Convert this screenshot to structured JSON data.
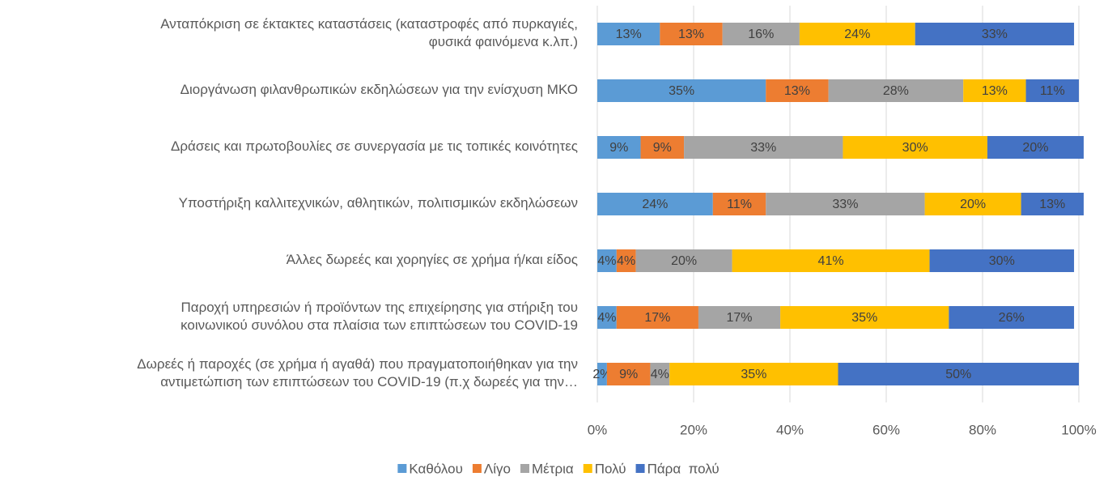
{
  "chart_data": {
    "type": "stacked_barh",
    "categories": [
      [
        "Ανταπόκριση σε έκτακτες καταστάσεις (καταστροφές από πυρκαγιές,",
        "φυσικά φαινόμενα κ.λπ.)"
      ],
      [
        "Διοργάνωση φιλανθρωπικών εκδηλώσεων για την ενίσχυση ΜΚΟ"
      ],
      [
        "Δράσεις και πρωτοβουλίες σε συνεργασία με τις τοπικές κοινότητες"
      ],
      [
        "Υποστήριξη καλλιτεχνικών, αθλητικών, πολιτισμικών εκδηλώσεων"
      ],
      [
        "Άλλες δωρεές και χορηγίες σε χρήμα ή/και είδος"
      ],
      [
        "Παροχή υπηρεσιών ή προϊόντων της επιχείρησης για στήριξη του",
        "κοινωνικού συνόλου στα πλαίσια  των επιπτώσεων του COVID-19"
      ],
      [
        "Δωρεές ή παροχές (σε χρήμα ή αγαθά) που πραγματοποιήθηκαν για την",
        "αντιμετώπιση των επιπτώσεων του COVID-19 (π.χ δωρεές για την…"
      ]
    ],
    "series": [
      {
        "name": "Καθόλου",
        "color": "#5b9bd5",
        "values": [
          13,
          35,
          9,
          24,
          4,
          4,
          2
        ],
        "value_labels": [
          "13%",
          "35%",
          "9%",
          "24%",
          "4%",
          "4%",
          "2%"
        ]
      },
      {
        "name": "Λίγο",
        "color": "#ed7d31",
        "values": [
          13,
          13,
          9,
          11,
          4,
          17,
          9
        ],
        "value_labels": [
          "13%",
          "13%",
          "9%",
          "11%",
          "4%",
          "17%",
          "9%"
        ]
      },
      {
        "name": "Μέτρια",
        "color": "#a5a5a5",
        "values": [
          16,
          28,
          33,
          33,
          20,
          17,
          4
        ],
        "value_labels": [
          "16%",
          "28%",
          "33%",
          "33%",
          "20%",
          "17%",
          "4%"
        ]
      },
      {
        "name": "Πολύ",
        "color": "#ffc000",
        "values": [
          24,
          13,
          30,
          20,
          41,
          35,
          35
        ],
        "value_labels": [
          "24%",
          "13%",
          "30%",
          "20%",
          "41%",
          "35%",
          "35%"
        ]
      },
      {
        "name": "Πάρα  πολύ",
        "color": "#4472c4",
        "values": [
          33,
          11,
          20,
          13,
          30,
          26,
          50
        ],
        "value_labels": [
          "33%",
          "11%",
          "20%",
          "13%",
          "30%",
          "26%",
          "50%"
        ]
      }
    ],
    "xlim": [
      0,
      100
    ],
    "xticks": [
      {
        "value": 0,
        "label": "0%"
      },
      {
        "value": 20,
        "label": "20%"
      },
      {
        "value": 40,
        "label": "40%"
      },
      {
        "value": 60,
        "label": "60%"
      },
      {
        "value": 80,
        "label": "80%"
      },
      {
        "value": 100,
        "label": "100%"
      }
    ],
    "grid": true,
    "legend": "bottom"
  }
}
